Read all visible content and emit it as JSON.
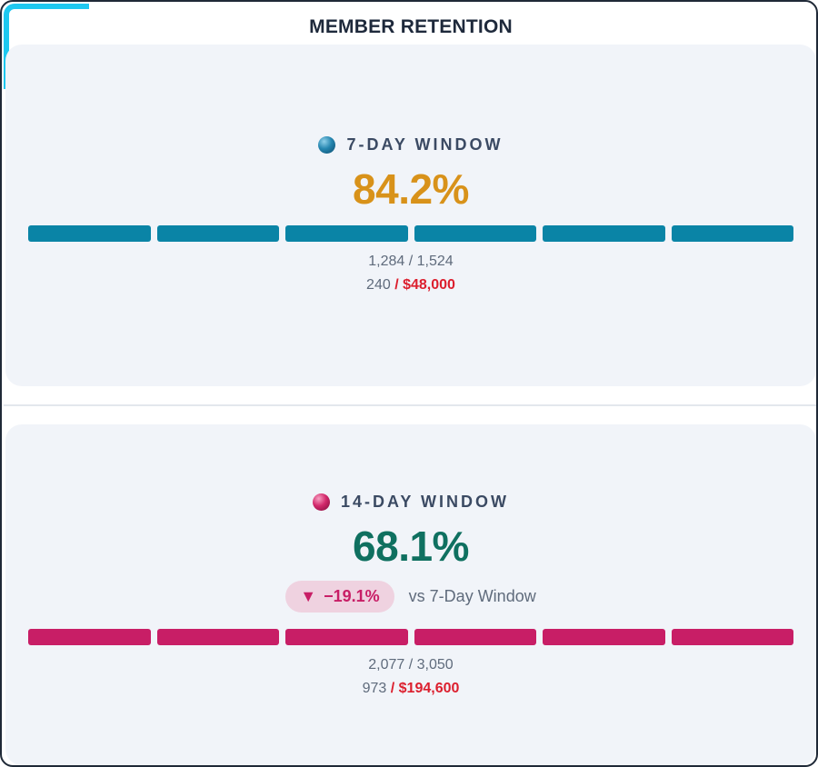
{
  "title": "MEMBER RETENTION",
  "colors": {
    "accent_frame": "#1ec8f0",
    "window_7_bar": "#0a84a6",
    "window_14_bar": "#c81e66",
    "pct_7": "#d8921a",
    "pct_14": "#0f7060",
    "cost": "#dc1f2e"
  },
  "windows": [
    {
      "label": "7-DAY WINDOW",
      "icon": "teal-sphere-icon",
      "rate": "84.2%",
      "retained_of_total": "1,284 / 1,524",
      "lost": "240",
      "lost_value": "/ $48,000",
      "bar_segments": 6,
      "bar_filled_segments": 6
    },
    {
      "label": "14-DAY WINDOW",
      "icon": "pink-sphere-icon",
      "rate": "68.1%",
      "delta": {
        "arrow": "▼",
        "value": "−19.1%",
        "comparison": "vs 7-Day Window"
      },
      "retained_of_total": "2,077 / 3,050",
      "lost": "973",
      "lost_value": "/ $194,600",
      "bar_segments": 6,
      "bar_filled_segments": 6
    }
  ]
}
